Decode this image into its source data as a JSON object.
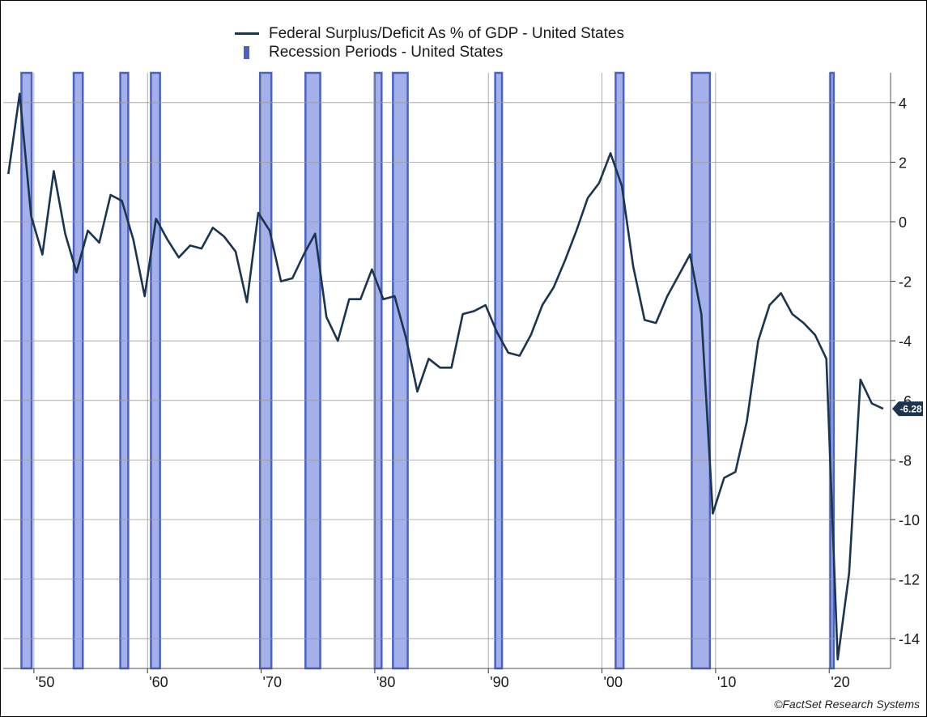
{
  "legend": {
    "series_label": "Federal Surplus/Deficit As % of GDP - United States",
    "recession_label": "Recession Periods - United States"
  },
  "credit": "©FactSet Research Systems",
  "colors": {
    "line": "#1b3550",
    "recession_fill": "#a3b0ea",
    "recession_edge": "#4a62c4",
    "grid": "#9a9a9a",
    "badge": "#1b3550"
  },
  "chart_data": {
    "type": "line",
    "x_range": [
      1947.3,
      2025.4
    ],
    "ylim": [
      -15,
      5
    ],
    "y_ticks": [
      4,
      2,
      0,
      -2,
      -4,
      -6,
      -8,
      -10,
      -12,
      -14
    ],
    "y_axis_position": "right",
    "x_ticks": [
      {
        "year": 1950,
        "label": "'50"
      },
      {
        "year": 1960,
        "label": "'60"
      },
      {
        "year": 1970,
        "label": "'70"
      },
      {
        "year": 1980,
        "label": "'80"
      },
      {
        "year": 1990,
        "label": "'90"
      },
      {
        "year": 2000,
        "label": "'00"
      },
      {
        "year": 2010,
        "label": "'10"
      },
      {
        "year": 2020,
        "label": "'20"
      }
    ],
    "grid": true,
    "legend_position": "top-center",
    "last_value_label": "-6.28",
    "series": [
      {
        "name": "Federal Surplus/Deficit As % of GDP - United States",
        "x": [
          1947.75,
          1948.75,
          1949.75,
          1950.75,
          1951.75,
          1952.75,
          1953.75,
          1954.75,
          1955.75,
          1956.75,
          1957.75,
          1958.75,
          1959.75,
          1960.75,
          1961.75,
          1962.75,
          1963.75,
          1964.75,
          1965.75,
          1966.75,
          1967.75,
          1968.75,
          1969.75,
          1970.75,
          1971.75,
          1972.75,
          1973.75,
          1974.75,
          1975.75,
          1976.75,
          1977.75,
          1978.75,
          1979.75,
          1980.75,
          1981.75,
          1982.75,
          1983.75,
          1984.75,
          1985.75,
          1986.75,
          1987.75,
          1988.75,
          1989.75,
          1990.75,
          1991.75,
          1992.75,
          1993.75,
          1994.75,
          1995.75,
          1996.75,
          1997.75,
          1998.75,
          1999.75,
          2000.75,
          2001.75,
          2002.75,
          2003.75,
          2004.75,
          2005.75,
          2006.75,
          2007.75,
          2008.75,
          2009.75,
          2010.75,
          2011.75,
          2012.75,
          2013.75,
          2014.75,
          2015.75,
          2016.75,
          2017.75,
          2018.75,
          2019.75,
          2020.75,
          2021.75,
          2022.75,
          2023.75,
          2024.75
        ],
        "y": [
          1.6,
          4.3,
          0.2,
          -1.1,
          1.7,
          -0.4,
          -1.7,
          -0.3,
          -0.7,
          0.9,
          0.7,
          -0.6,
          -2.5,
          0.1,
          -0.6,
          -1.2,
          -0.8,
          -0.9,
          -0.2,
          -0.5,
          -1.0,
          -2.7,
          0.3,
          -0.3,
          -2.0,
          -1.9,
          -1.1,
          -0.4,
          -3.2,
          -4.0,
          -2.6,
          -2.6,
          -1.6,
          -2.6,
          -2.5,
          -3.9,
          -5.7,
          -4.6,
          -4.9,
          -4.9,
          -3.1,
          -3.0,
          -2.8,
          -3.7,
          -4.4,
          -4.5,
          -3.8,
          -2.8,
          -2.2,
          -1.3,
          -0.3,
          0.8,
          1.3,
          2.3,
          1.2,
          -1.5,
          -3.3,
          -3.4,
          -2.5,
          -1.8,
          -1.1,
          -3.1,
          -9.8,
          -8.6,
          -8.4,
          -6.7,
          -4.0,
          -2.8,
          -2.4,
          -3.1,
          -3.4,
          -3.8,
          -4.6,
          -14.7,
          -11.8,
          -5.3,
          -6.1,
          -6.28
        ]
      }
    ],
    "recessions": [
      [
        1948.9,
        1949.8
      ],
      [
        1953.5,
        1954.3
      ],
      [
        1957.6,
        1958.3
      ],
      [
        1960.3,
        1961.1
      ],
      [
        1969.9,
        1970.9
      ],
      [
        1973.9,
        1975.2
      ],
      [
        1980.0,
        1980.6
      ],
      [
        1981.6,
        1982.9
      ],
      [
        1990.6,
        1991.2
      ],
      [
        2001.2,
        2001.9
      ],
      [
        2007.9,
        2009.5
      ],
      [
        2020.1,
        2020.4
      ]
    ]
  }
}
